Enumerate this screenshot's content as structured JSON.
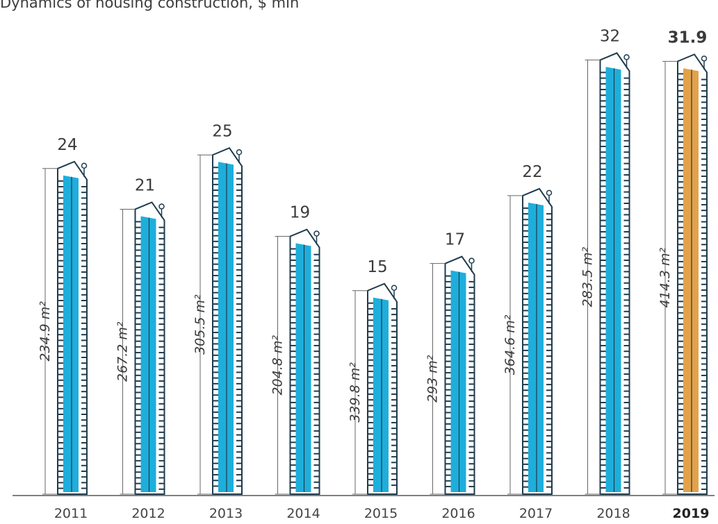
{
  "chart_data": {
    "type": "bar",
    "title": "Dynamics of housing construction, $ mln",
    "categories": [
      "2011",
      "2012",
      "2013",
      "2014",
      "2015",
      "2016",
      "2017",
      "2018",
      "2019"
    ],
    "values": [
      24,
      21,
      25,
      19,
      15,
      17,
      22,
      32,
      31.9
    ],
    "value_labels": [
      "24",
      "21",
      "25",
      "19",
      "15",
      "17",
      "22",
      "32",
      "31.9"
    ],
    "area_labels": [
      "234.9 m²",
      "267.2 m²",
      "305.5 m²",
      "204.8 m²",
      "339.8 m²",
      "293 m²",
      "364.6 m²",
      "283.5 m²",
      "414.3 m²"
    ],
    "highlight_category": "2019",
    "colors": {
      "bar_fill": "#1eaedb",
      "highlight_fill": "#e3a24a",
      "outline": "#1f3b4d",
      "axis": "#555555",
      "text": "#3b3b3b"
    }
  }
}
